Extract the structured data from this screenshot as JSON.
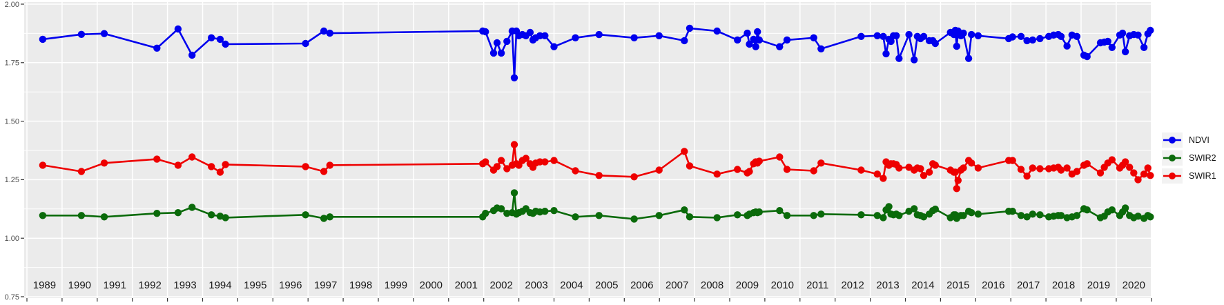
{
  "chart_data": {
    "type": "line",
    "title": "",
    "xlabel": "",
    "ylabel": "",
    "x_axis": {
      "range": [
        1989,
        2021
      ],
      "tick_label_years": [
        1989,
        1990,
        1991,
        1992,
        1993,
        1994,
        1995,
        1996,
        1997,
        1998,
        1999,
        2000,
        2001,
        2002,
        2003,
        2004,
        2005,
        2006,
        2007,
        2008,
        2009,
        2010,
        2011,
        2012,
        2013,
        2014,
        2015,
        2016,
        2017,
        2018,
        2019,
        2020
      ],
      "gridline_years": [
        1989,
        1990,
        1991,
        1992,
        1993,
        1994,
        1995,
        1996,
        1997,
        1998,
        1999,
        2000,
        2001,
        2002,
        2003,
        2004,
        2005,
        2006,
        2007,
        2008,
        2009,
        2010,
        2011,
        2012,
        2013,
        2014,
        2015,
        2016,
        2017,
        2018,
        2019,
        2020,
        2021
      ]
    },
    "y_axis": {
      "range": [
        0.75,
        2.0
      ],
      "major_ticks": [
        2.0,
        1.75,
        1.5,
        1.25,
        1.0,
        0.75
      ],
      "major_tick_labels": [
        "2.00",
        "1.75",
        "1.50",
        "1.25",
        "1.00",
        "0.75"
      ],
      "minor_ticks": [
        1.875,
        1.625,
        1.375,
        1.125,
        0.875
      ]
    },
    "legend": [
      {
        "label": "NDVI",
        "color": "#0000EE"
      },
      {
        "label": "SWIR2",
        "color": "#0A6A0A"
      },
      {
        "label": "SWIR1",
        "color": "#EE0000"
      }
    ],
    "grid": true,
    "legend_position": "right-center",
    "style": {
      "panel_bg": "#EBEBEB",
      "grid_color": "#FFFFFF",
      "tick_color": "#333333",
      "y_label_color": "#4D4D4D",
      "x_label_color": "#1A1A1A",
      "legend_key_bg": "#F2F2F2"
    },
    "x": [
      1989.45,
      1990.55,
      1991.2,
      1992.7,
      1993.3,
      1993.7,
      1994.25,
      1994.5,
      1994.65,
      1996.93,
      1997.45,
      1997.62,
      2001.97,
      2002.05,
      2002.28,
      2002.38,
      2002.5,
      2002.66,
      2002.81,
      2002.87,
      2002.93,
      2003.0,
      2003.1,
      2003.2,
      2003.32,
      2003.4,
      2003.48,
      2003.6,
      2003.74,
      2004.0,
      2004.61,
      2005.28,
      2006.28,
      2006.99,
      2007.71,
      2007.86,
      2008.64,
      2009.22,
      2009.5,
      2009.56,
      2009.68,
      2009.74,
      2009.79,
      2009.84,
      2010.42,
      2010.63,
      2011.39,
      2011.6,
      2012.74,
      2013.2,
      2013.37,
      2013.45,
      2013.53,
      2013.59,
      2013.66,
      2013.74,
      2013.82,
      2014.1,
      2014.25,
      2014.34,
      2014.43,
      2014.52,
      2014.68,
      2014.78,
      2014.85,
      2015.28,
      2015.38,
      2015.42,
      2015.46,
      2015.5,
      2015.58,
      2015.65,
      2015.8,
      2015.88,
      2016.07,
      2016.94,
      2017.05,
      2017.29,
      2017.46,
      2017.62,
      2017.83,
      2018.08,
      2018.22,
      2018.35,
      2018.43,
      2018.6,
      2018.74,
      2018.88,
      2019.08,
      2019.17,
      2019.55,
      2019.66,
      2019.76,
      2019.88,
      2020.1,
      2020.18,
      2020.26,
      2020.38,
      2020.5,
      2020.62,
      2020.79,
      2020.9,
      2020.97
    ],
    "series": [
      {
        "name": "NDVI",
        "color": "#0000EE",
        "values": [
          1.85,
          1.871,
          1.874,
          1.812,
          1.894,
          1.782,
          1.856,
          1.85,
          1.829,
          1.832,
          1.885,
          1.876,
          1.885,
          1.882,
          1.791,
          1.835,
          1.791,
          1.841,
          1.885,
          1.685,
          1.885,
          1.865,
          1.87,
          1.865,
          1.879,
          1.847,
          1.856,
          1.865,
          1.865,
          1.818,
          1.856,
          1.87,
          1.856,
          1.865,
          1.844,
          1.897,
          1.885,
          1.847,
          1.876,
          1.829,
          1.85,
          1.818,
          1.882,
          1.847,
          1.818,
          1.847,
          1.856,
          1.809,
          1.862,
          1.865,
          1.862,
          1.788,
          1.85,
          1.841,
          1.865,
          1.865,
          1.768,
          1.87,
          1.762,
          1.862,
          1.853,
          1.862,
          1.844,
          1.844,
          1.832,
          1.879,
          1.87,
          1.888,
          1.82,
          1.885,
          1.865,
          1.876,
          1.768,
          1.87,
          1.865,
          1.853,
          1.86,
          1.862,
          1.844,
          1.847,
          1.853,
          1.862,
          1.868,
          1.87,
          1.862,
          1.821,
          1.868,
          1.862,
          1.782,
          1.776,
          1.835,
          1.838,
          1.841,
          1.815,
          1.868,
          1.876,
          1.797,
          1.865,
          1.87,
          1.868,
          1.815,
          1.873,
          1.888
        ]
      },
      {
        "name": "SWIR2",
        "color": "#0A6A0A",
        "values": [
          1.097,
          1.097,
          1.091,
          1.106,
          1.109,
          1.132,
          1.1,
          1.094,
          1.088,
          1.1,
          1.085,
          1.091,
          1.091,
          1.106,
          1.118,
          1.129,
          1.126,
          1.106,
          1.109,
          1.194,
          1.103,
          1.109,
          1.115,
          1.126,
          1.109,
          1.106,
          1.115,
          1.112,
          1.115,
          1.118,
          1.091,
          1.097,
          1.082,
          1.097,
          1.121,
          1.091,
          1.088,
          1.1,
          1.097,
          1.103,
          1.109,
          1.112,
          1.109,
          1.112,
          1.118,
          1.097,
          1.097,
          1.103,
          1.1,
          1.097,
          1.088,
          1.121,
          1.135,
          1.103,
          1.1,
          1.103,
          1.097,
          1.115,
          1.126,
          1.1,
          1.097,
          1.091,
          1.103,
          1.118,
          1.124,
          1.088,
          1.1,
          1.1,
          1.085,
          1.094,
          1.097,
          1.097,
          1.115,
          1.109,
          1.103,
          1.115,
          1.115,
          1.097,
          1.091,
          1.103,
          1.1,
          1.091,
          1.094,
          1.097,
          1.097,
          1.088,
          1.091,
          1.097,
          1.126,
          1.121,
          1.088,
          1.094,
          1.112,
          1.121,
          1.097,
          1.112,
          1.129,
          1.097,
          1.088,
          1.094,
          1.085,
          1.097,
          1.091
        ]
      },
      {
        "name": "SWIR1",
        "color": "#EE0000",
        "values": [
          1.312,
          1.285,
          1.321,
          1.338,
          1.312,
          1.347,
          1.306,
          1.282,
          1.315,
          1.306,
          1.285,
          1.312,
          1.318,
          1.326,
          1.291,
          1.306,
          1.332,
          1.297,
          1.312,
          1.4,
          1.318,
          1.312,
          1.332,
          1.341,
          1.318,
          1.303,
          1.321,
          1.326,
          1.326,
          1.332,
          1.288,
          1.268,
          1.262,
          1.291,
          1.371,
          1.309,
          1.274,
          1.294,
          1.279,
          1.285,
          1.318,
          1.326,
          1.321,
          1.329,
          1.347,
          1.294,
          1.288,
          1.321,
          1.291,
          1.274,
          1.256,
          1.326,
          1.312,
          1.318,
          1.318,
          1.315,
          1.3,
          1.303,
          1.291,
          1.3,
          1.297,
          1.268,
          1.282,
          1.318,
          1.312,
          1.291,
          1.282,
          1.282,
          1.212,
          1.247,
          1.291,
          1.3,
          1.332,
          1.321,
          1.3,
          1.332,
          1.332,
          1.294,
          1.265,
          1.3,
          1.297,
          1.297,
          1.3,
          1.303,
          1.291,
          1.3,
          1.274,
          1.285,
          1.312,
          1.318,
          1.279,
          1.303,
          1.321,
          1.335,
          1.3,
          1.312,
          1.326,
          1.303,
          1.279,
          1.25,
          1.274,
          1.3,
          1.268
        ]
      }
    ]
  }
}
